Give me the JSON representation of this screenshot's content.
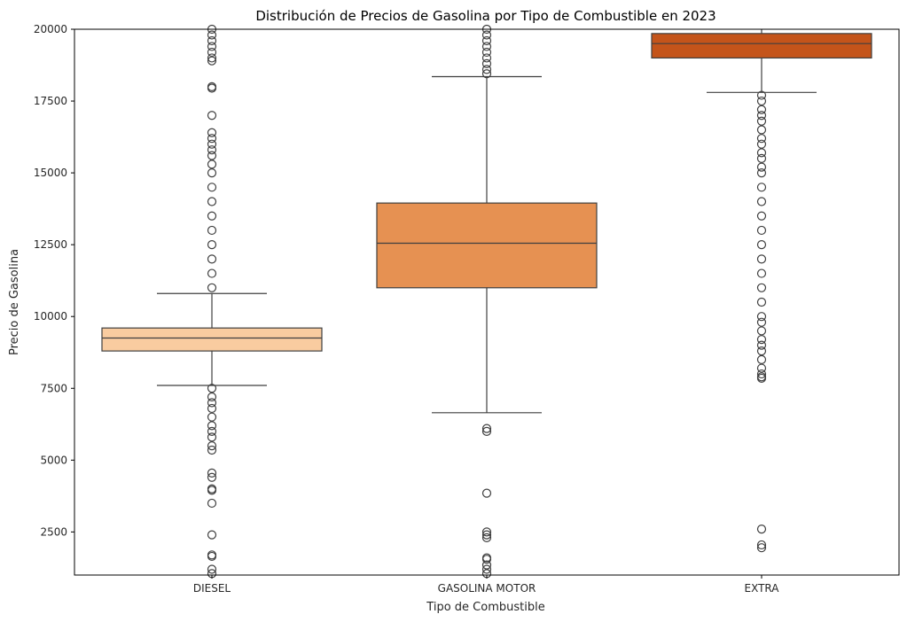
{
  "chart_data": {
    "type": "box",
    "title": "Distribución de Precios de Gasolina por Tipo de Combustible en 2023",
    "xlabel": "Tipo de Combustible",
    "ylabel": "Precio de Gasolina",
    "ylim": [
      1000,
      20000
    ],
    "yticks": [
      2500,
      5000,
      7500,
      10000,
      12500,
      15000,
      17500,
      20000
    ],
    "grid": false,
    "categories": [
      "DIESEL",
      "GASOLINA MOTOR",
      "EXTRA"
    ],
    "colors": [
      "#f9ccA0",
      "#e69152",
      "#c4541a"
    ],
    "boxes": [
      {
        "category": "DIESEL",
        "whisker_low": 7600,
        "q1": 8800,
        "median": 9250,
        "q3": 9600,
        "whisker_high": 10800,
        "outliers_high": [
          11000,
          11500,
          12000,
          12500,
          13000,
          13500,
          14000,
          14500,
          15000,
          15300,
          15600,
          15800,
          16000,
          16200,
          16400,
          17000,
          17950,
          18000,
          18900,
          19000,
          19200,
          19400,
          19600,
          19800,
          20000
        ],
        "outliers_low": [
          7500,
          7200,
          7000,
          6800,
          6500,
          6200,
          6000,
          5800,
          5500,
          5350,
          4550,
          4400,
          4000,
          3950,
          3500,
          2400,
          1700,
          1650,
          1200,
          1050
        ]
      },
      {
        "category": "GASOLINA MOTOR",
        "whisker_low": 6650,
        "q1": 11000,
        "median": 12550,
        "q3": 13950,
        "whisker_high": 18350,
        "outliers_high": [
          18450,
          18600,
          18800,
          19000,
          19200,
          19400,
          19600,
          19800,
          20000
        ],
        "outliers_low": [
          6100,
          6000,
          3850,
          2500,
          2400,
          2300,
          1600,
          1550,
          1350,
          1200,
          1050
        ]
      },
      {
        "category": "EXTRA",
        "whisker_low": 17800,
        "q1": 19000,
        "median": 19500,
        "q3": 19850,
        "whisker_high": 20000,
        "outliers_low": [
          17700,
          17500,
          17200,
          17000,
          16800,
          16500,
          16200,
          16000,
          15700,
          15500,
          15200,
          15000,
          14500,
          14000,
          13500,
          13000,
          12500,
          12000,
          11500,
          11000,
          10500,
          10000,
          9800,
          9500,
          9200,
          9000,
          8800,
          8500,
          8200,
          8000,
          7900,
          7850,
          2600,
          2050,
          1950
        ]
      }
    ]
  }
}
